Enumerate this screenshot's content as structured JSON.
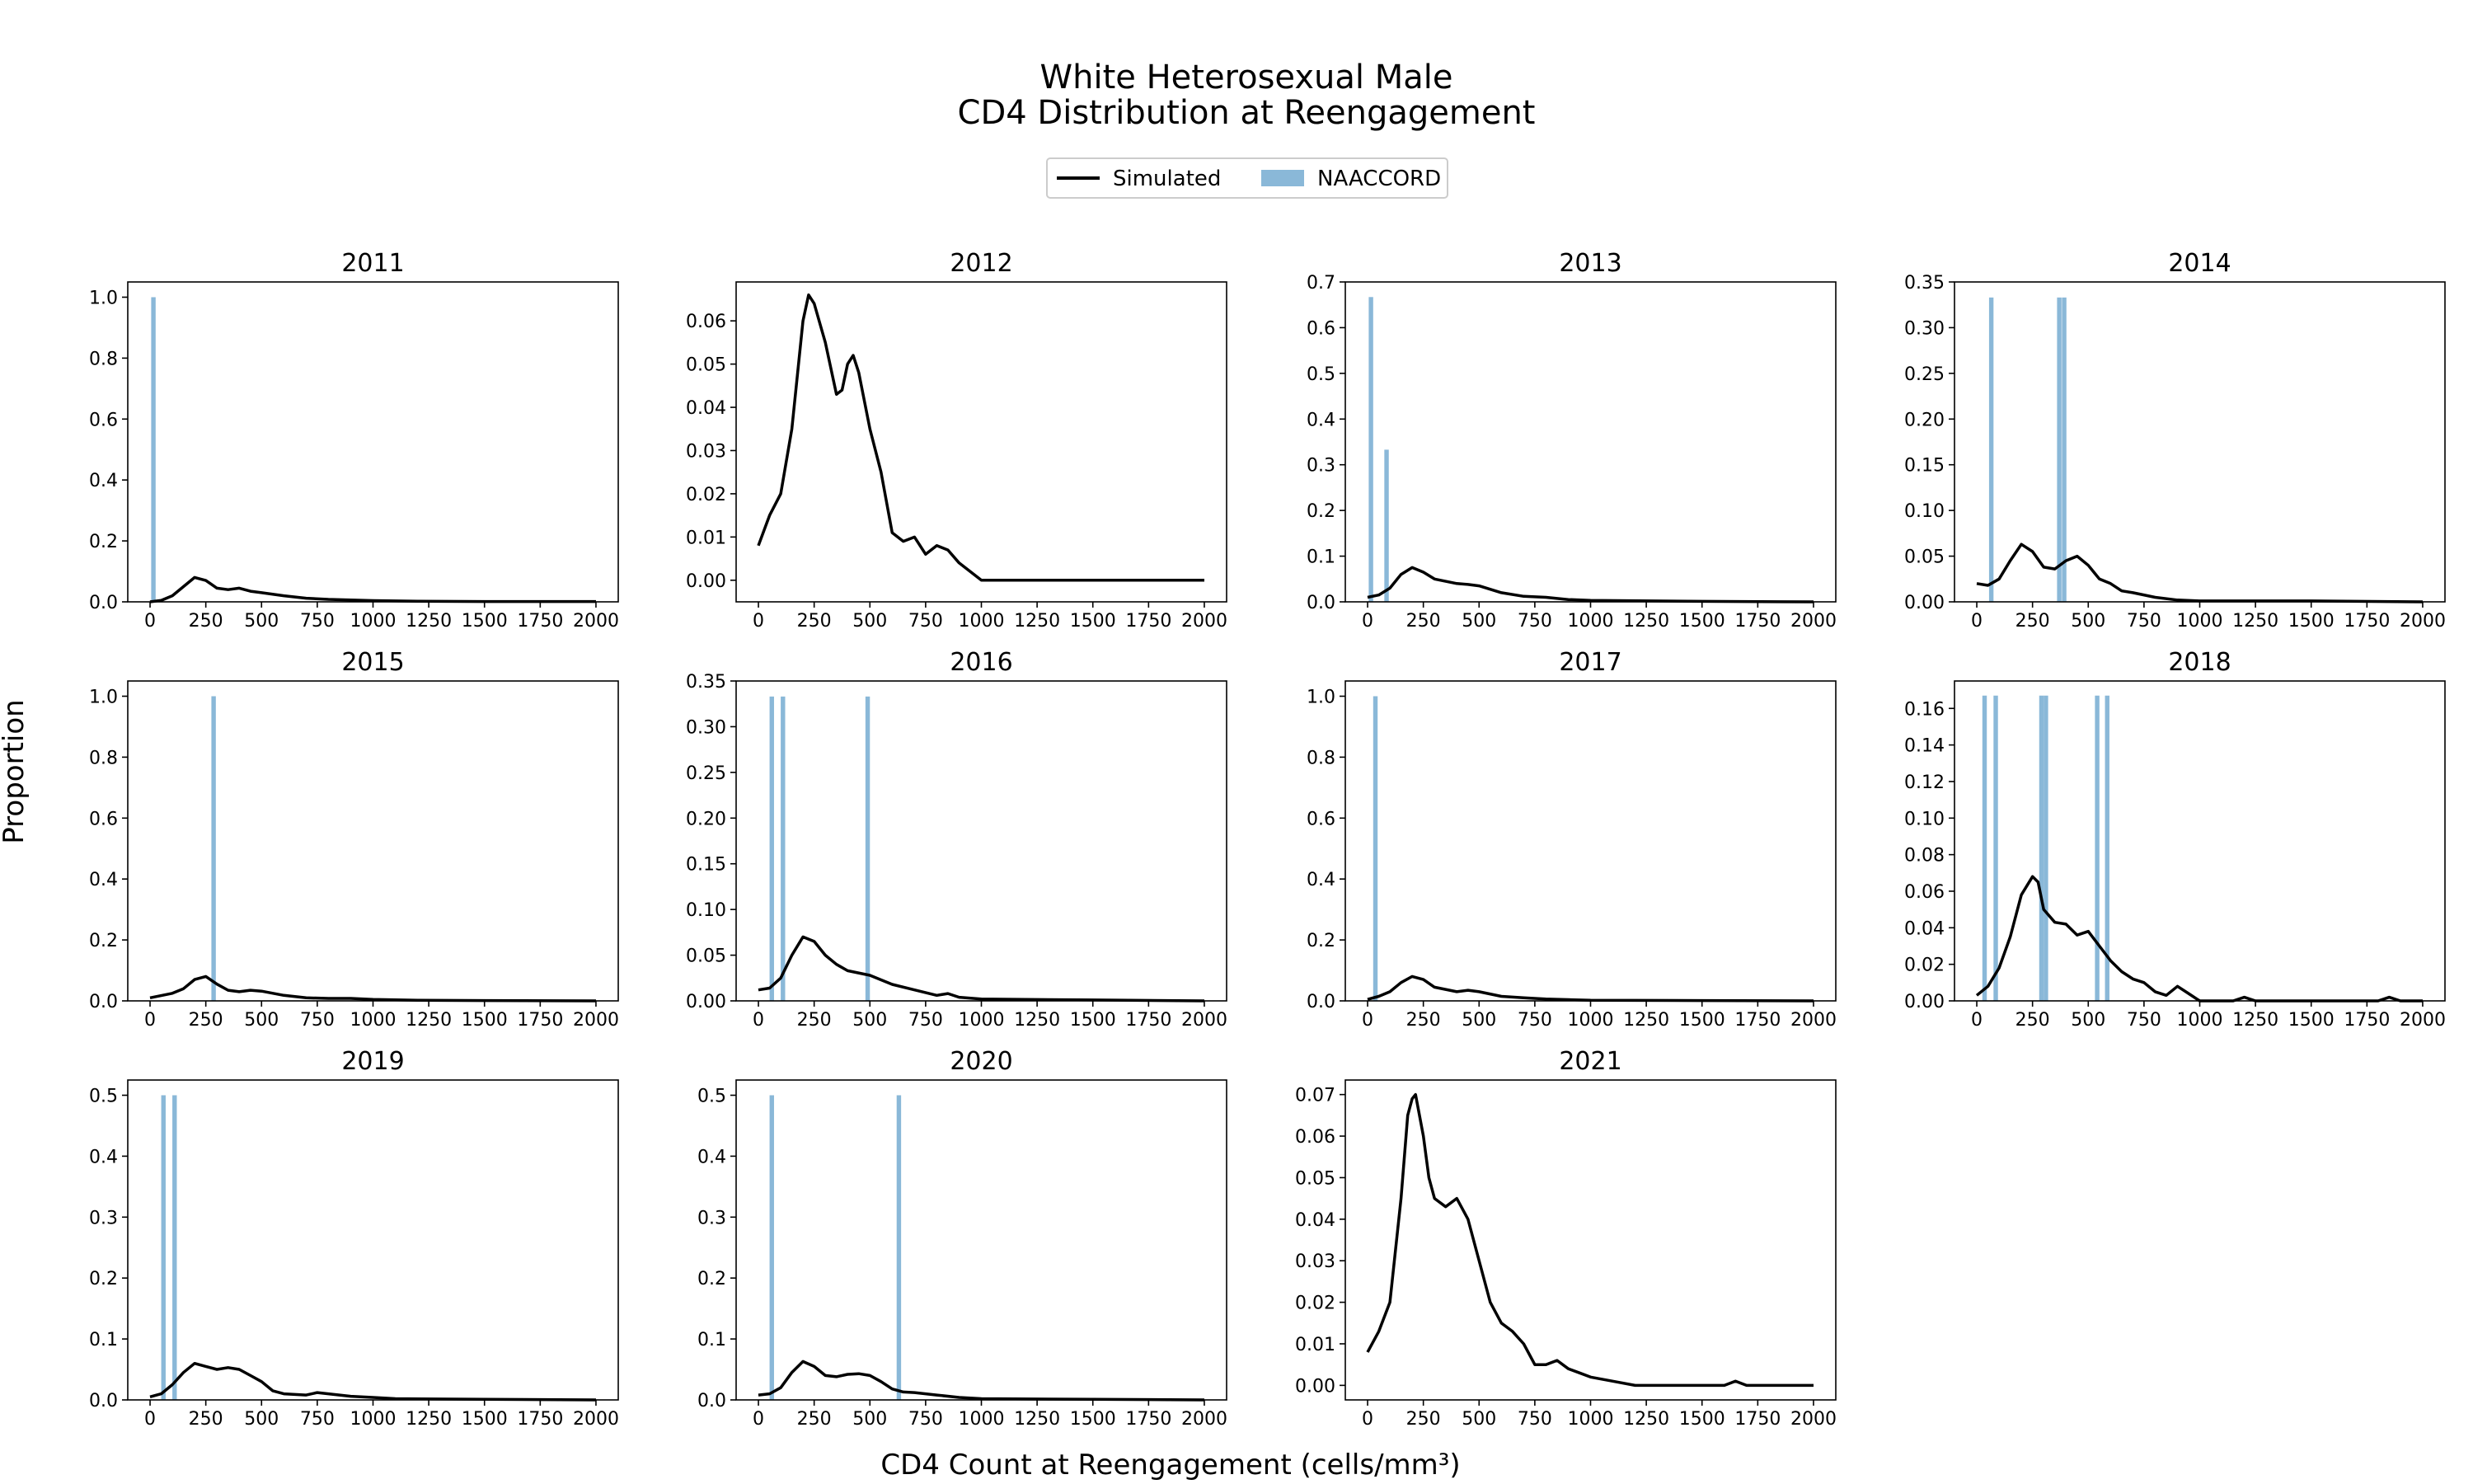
{
  "figure": {
    "title_line1": "White Heterosexual Male",
    "title_line2": "CD4 Distribution at Reengagement",
    "xlabel": "CD4 Count at Reengagement (cells/mm³)",
    "ylabel": "Proportion",
    "legend": [
      {
        "label": "Simulated",
        "kind": "line",
        "color": "#000000"
      },
      {
        "label": "NAACCORD",
        "kind": "bar",
        "color": "#8ab8d8"
      }
    ],
    "legend_placement": "top-center"
  },
  "chart_data": [
    {
      "type": "line+bar",
      "title": "2011",
      "xlim": [
        -100,
        2100
      ],
      "ylim": [
        0,
        1.05
      ],
      "xticks": [
        0,
        250,
        500,
        750,
        1000,
        1250,
        1500,
        1750,
        2000
      ],
      "yticks": [
        0.0,
        0.2,
        0.4,
        0.6,
        0.8,
        1.0
      ],
      "yfmt": 1,
      "bars": [
        {
          "x": 15,
          "value": 1.0
        }
      ],
      "simulated": [
        [
          0,
          0
        ],
        [
          50,
          0.005
        ],
        [
          100,
          0.02
        ],
        [
          150,
          0.05
        ],
        [
          200,
          0.08
        ],
        [
          250,
          0.07
        ],
        [
          300,
          0.045
        ],
        [
          350,
          0.04
        ],
        [
          400,
          0.045
        ],
        [
          450,
          0.035
        ],
        [
          500,
          0.03
        ],
        [
          600,
          0.02
        ],
        [
          700,
          0.012
        ],
        [
          800,
          0.008
        ],
        [
          1000,
          0.004
        ],
        [
          1200,
          0.002
        ],
        [
          1500,
          0.001
        ],
        [
          2000,
          0.001
        ]
      ]
    },
    {
      "type": "line+bar",
      "title": "2012",
      "xlim": [
        -100,
        2100
      ],
      "ylim": [
        -0.005,
        0.069
      ],
      "xticks": [
        0,
        250,
        500,
        750,
        1000,
        1250,
        1500,
        1750,
        2000
      ],
      "yticks": [
        0.0,
        0.01,
        0.02,
        0.03,
        0.04,
        0.05,
        0.06
      ],
      "yfmt": 2,
      "bars": [],
      "simulated": [
        [
          0,
          0.008
        ],
        [
          50,
          0.015
        ],
        [
          100,
          0.02
        ],
        [
          150,
          0.035
        ],
        [
          200,
          0.06
        ],
        [
          225,
          0.066
        ],
        [
          250,
          0.064
        ],
        [
          300,
          0.055
        ],
        [
          350,
          0.043
        ],
        [
          375,
          0.044
        ],
        [
          400,
          0.05
        ],
        [
          425,
          0.052
        ],
        [
          450,
          0.048
        ],
        [
          500,
          0.035
        ],
        [
          550,
          0.025
        ],
        [
          600,
          0.011
        ],
        [
          650,
          0.009
        ],
        [
          700,
          0.01
        ],
        [
          750,
          0.006
        ],
        [
          800,
          0.008
        ],
        [
          850,
          0.007
        ],
        [
          900,
          0.004
        ],
        [
          950,
          0.002
        ],
        [
          1000,
          0.0
        ],
        [
          1500,
          0.0
        ],
        [
          2000,
          0.0
        ]
      ]
    },
    {
      "type": "line+bar",
      "title": "2013",
      "xlim": [
        -100,
        2100
      ],
      "ylim": [
        0,
        0.7
      ],
      "xticks": [
        0,
        250,
        500,
        750,
        1000,
        1250,
        1500,
        1750,
        2000
      ],
      "yticks": [
        0.0,
        0.1,
        0.2,
        0.3,
        0.4,
        0.5,
        0.6,
        0.7
      ],
      "yfmt": 1,
      "bars": [
        {
          "x": 15,
          "value": 0.667
        },
        {
          "x": 85,
          "value": 0.333
        }
      ],
      "simulated": [
        [
          0,
          0.01
        ],
        [
          50,
          0.015
        ],
        [
          100,
          0.03
        ],
        [
          150,
          0.06
        ],
        [
          200,
          0.075
        ],
        [
          250,
          0.065
        ],
        [
          300,
          0.05
        ],
        [
          400,
          0.04
        ],
        [
          450,
          0.038
        ],
        [
          500,
          0.035
        ],
        [
          600,
          0.02
        ],
        [
          700,
          0.012
        ],
        [
          800,
          0.01
        ],
        [
          900,
          0.005
        ],
        [
          1000,
          0.003
        ],
        [
          1500,
          0.001
        ],
        [
          2000,
          0.0
        ]
      ]
    },
    {
      "type": "line+bar",
      "title": "2014",
      "xlim": [
        -100,
        2100
      ],
      "ylim": [
        0,
        0.35
      ],
      "xticks": [
        0,
        250,
        500,
        750,
        1000,
        1250,
        1500,
        1750,
        2000
      ],
      "yticks": [
        0.0,
        0.05,
        0.1,
        0.15,
        0.2,
        0.25,
        0.3,
        0.35
      ],
      "yfmt": 2,
      "bars": [
        {
          "x": 65,
          "value": 0.333
        },
        {
          "x": 370,
          "value": 0.333
        },
        {
          "x": 392,
          "value": 0.333
        }
      ],
      "simulated": [
        [
          0,
          0.02
        ],
        [
          50,
          0.018
        ],
        [
          100,
          0.025
        ],
        [
          150,
          0.045
        ],
        [
          200,
          0.063
        ],
        [
          250,
          0.055
        ],
        [
          300,
          0.038
        ],
        [
          350,
          0.036
        ],
        [
          400,
          0.045
        ],
        [
          450,
          0.05
        ],
        [
          500,
          0.04
        ],
        [
          550,
          0.025
        ],
        [
          600,
          0.02
        ],
        [
          650,
          0.012
        ],
        [
          700,
          0.01
        ],
        [
          800,
          0.005
        ],
        [
          900,
          0.002
        ],
        [
          1000,
          0.001
        ],
        [
          1500,
          0.001
        ],
        [
          2000,
          0.0
        ]
      ]
    },
    {
      "type": "line+bar",
      "title": "2015",
      "xlim": [
        -100,
        2100
      ],
      "ylim": [
        0,
        1.05
      ],
      "xticks": [
        0,
        250,
        500,
        750,
        1000,
        1250,
        1500,
        1750,
        2000
      ],
      "yticks": [
        0.0,
        0.2,
        0.4,
        0.6,
        0.8,
        1.0
      ],
      "yfmt": 1,
      "bars": [
        {
          "x": 285,
          "value": 1.0
        }
      ],
      "simulated": [
        [
          0,
          0.01
        ],
        [
          100,
          0.025
        ],
        [
          150,
          0.04
        ],
        [
          200,
          0.07
        ],
        [
          250,
          0.08
        ],
        [
          300,
          0.055
        ],
        [
          350,
          0.035
        ],
        [
          400,
          0.03
        ],
        [
          450,
          0.035
        ],
        [
          500,
          0.032
        ],
        [
          600,
          0.018
        ],
        [
          700,
          0.01
        ],
        [
          800,
          0.008
        ],
        [
          900,
          0.008
        ],
        [
          1000,
          0.005
        ],
        [
          1200,
          0.002
        ],
        [
          1500,
          0.001
        ],
        [
          2000,
          0.0
        ]
      ]
    },
    {
      "type": "line+bar",
      "title": "2016",
      "xlim": [
        -100,
        2100
      ],
      "ylim": [
        0,
        0.35
      ],
      "xticks": [
        0,
        250,
        500,
        750,
        1000,
        1250,
        1500,
        1750,
        2000
      ],
      "yticks": [
        0.0,
        0.05,
        0.1,
        0.15,
        0.2,
        0.25,
        0.3,
        0.35
      ],
      "yfmt": 2,
      "bars": [
        {
          "x": 60,
          "value": 0.333
        },
        {
          "x": 110,
          "value": 0.333
        },
        {
          "x": 490,
          "value": 0.333
        }
      ],
      "simulated": [
        [
          0,
          0.012
        ],
        [
          50,
          0.014
        ],
        [
          100,
          0.025
        ],
        [
          150,
          0.05
        ],
        [
          200,
          0.07
        ],
        [
          250,
          0.065
        ],
        [
          300,
          0.05
        ],
        [
          350,
          0.04
        ],
        [
          400,
          0.033
        ],
        [
          500,
          0.028
        ],
        [
          600,
          0.018
        ],
        [
          700,
          0.012
        ],
        [
          800,
          0.006
        ],
        [
          850,
          0.008
        ],
        [
          900,
          0.004
        ],
        [
          1000,
          0.002
        ],
        [
          1500,
          0.001
        ],
        [
          2000,
          0.0
        ]
      ]
    },
    {
      "type": "line+bar",
      "title": "2017",
      "xlim": [
        -100,
        2100
      ],
      "ylim": [
        0,
        1.05
      ],
      "xticks": [
        0,
        250,
        500,
        750,
        1000,
        1250,
        1500,
        1750,
        2000
      ],
      "yticks": [
        0.0,
        0.2,
        0.4,
        0.6,
        0.8,
        1.0
      ],
      "yfmt": 1,
      "bars": [
        {
          "x": 35,
          "value": 1.0
        }
      ],
      "simulated": [
        [
          0,
          0.005
        ],
        [
          50,
          0.015
        ],
        [
          100,
          0.03
        ],
        [
          150,
          0.06
        ],
        [
          200,
          0.08
        ],
        [
          250,
          0.07
        ],
        [
          300,
          0.045
        ],
        [
          400,
          0.03
        ],
        [
          450,
          0.035
        ],
        [
          500,
          0.03
        ],
        [
          600,
          0.015
        ],
        [
          700,
          0.01
        ],
        [
          800,
          0.006
        ],
        [
          900,
          0.004
        ],
        [
          1000,
          0.002
        ],
        [
          1500,
          0.001
        ],
        [
          2000,
          0.0
        ]
      ]
    },
    {
      "type": "line+bar",
      "title": "2018",
      "xlim": [
        -100,
        2100
      ],
      "ylim": [
        0,
        0.175
      ],
      "xticks": [
        0,
        250,
        500,
        750,
        1000,
        1250,
        1500,
        1750,
        2000
      ],
      "yticks": [
        0.0,
        0.02,
        0.04,
        0.06,
        0.08,
        0.1,
        0.12,
        0.14,
        0.16
      ],
      "yfmt": 2,
      "bars": [
        {
          "x": 35,
          "value": 0.167
        },
        {
          "x": 85,
          "value": 0.167
        },
        {
          "x": 290,
          "value": 0.167
        },
        {
          "x": 310,
          "value": 0.167
        },
        {
          "x": 540,
          "value": 0.167
        },
        {
          "x": 585,
          "value": 0.167
        }
      ],
      "simulated": [
        [
          0,
          0.003
        ],
        [
          50,
          0.008
        ],
        [
          100,
          0.018
        ],
        [
          150,
          0.035
        ],
        [
          200,
          0.058
        ],
        [
          250,
          0.068
        ],
        [
          275,
          0.065
        ],
        [
          300,
          0.05
        ],
        [
          350,
          0.043
        ],
        [
          400,
          0.042
        ],
        [
          450,
          0.036
        ],
        [
          500,
          0.038
        ],
        [
          550,
          0.03
        ],
        [
          600,
          0.022
        ],
        [
          650,
          0.016
        ],
        [
          700,
          0.012
        ],
        [
          750,
          0.01
        ],
        [
          800,
          0.005
        ],
        [
          850,
          0.003
        ],
        [
          900,
          0.008
        ],
        [
          950,
          0.004
        ],
        [
          1000,
          0.0
        ],
        [
          1150,
          0.0
        ],
        [
          1200,
          0.002
        ],
        [
          1250,
          0.0
        ],
        [
          1800,
          0.0
        ],
        [
          1850,
          0.002
        ],
        [
          1900,
          0.0
        ],
        [
          2000,
          0.0
        ]
      ]
    },
    {
      "type": "line+bar",
      "title": "2019",
      "xlim": [
        -100,
        2100
      ],
      "ylim": [
        0,
        0.525
      ],
      "xticks": [
        0,
        250,
        500,
        750,
        1000,
        1250,
        1500,
        1750,
        2000
      ],
      "yticks": [
        0.0,
        0.1,
        0.2,
        0.3,
        0.4,
        0.5
      ],
      "yfmt": 1,
      "bars": [
        {
          "x": 60,
          "value": 0.5
        },
        {
          "x": 110,
          "value": 0.5
        }
      ],
      "simulated": [
        [
          0,
          0.005
        ],
        [
          50,
          0.01
        ],
        [
          100,
          0.025
        ],
        [
          150,
          0.045
        ],
        [
          200,
          0.06
        ],
        [
          250,
          0.055
        ],
        [
          300,
          0.05
        ],
        [
          350,
          0.053
        ],
        [
          400,
          0.05
        ],
        [
          450,
          0.04
        ],
        [
          500,
          0.03
        ],
        [
          550,
          0.015
        ],
        [
          600,
          0.01
        ],
        [
          700,
          0.008
        ],
        [
          750,
          0.012
        ],
        [
          800,
          0.01
        ],
        [
          900,
          0.006
        ],
        [
          1000,
          0.004
        ],
        [
          1100,
          0.002
        ],
        [
          1500,
          0.001
        ],
        [
          2000,
          0.0
        ]
      ]
    },
    {
      "type": "line+bar",
      "title": "2020",
      "xlim": [
        -100,
        2100
      ],
      "ylim": [
        0,
        0.525
      ],
      "xticks": [
        0,
        250,
        500,
        750,
        1000,
        1250,
        1500,
        1750,
        2000
      ],
      "yticks": [
        0.0,
        0.1,
        0.2,
        0.3,
        0.4,
        0.5
      ],
      "yfmt": 1,
      "bars": [
        {
          "x": 60,
          "value": 0.5
        },
        {
          "x": 630,
          "value": 0.5
        }
      ],
      "simulated": [
        [
          0,
          0.008
        ],
        [
          50,
          0.01
        ],
        [
          100,
          0.02
        ],
        [
          150,
          0.045
        ],
        [
          200,
          0.063
        ],
        [
          250,
          0.055
        ],
        [
          300,
          0.04
        ],
        [
          350,
          0.038
        ],
        [
          400,
          0.042
        ],
        [
          450,
          0.043
        ],
        [
          500,
          0.04
        ],
        [
          550,
          0.03
        ],
        [
          600,
          0.018
        ],
        [
          650,
          0.013
        ],
        [
          700,
          0.012
        ],
        [
          800,
          0.008
        ],
        [
          900,
          0.004
        ],
        [
          1000,
          0.002
        ],
        [
          1500,
          0.001
        ],
        [
          2000,
          0.0
        ]
      ]
    },
    {
      "type": "line+bar",
      "title": "2021",
      "xlim": [
        -100,
        2100
      ],
      "ylim": [
        -0.0035,
        0.0735
      ],
      "xticks": [
        0,
        250,
        500,
        750,
        1000,
        1250,
        1500,
        1750,
        2000
      ],
      "yticks": [
        0.0,
        0.01,
        0.02,
        0.03,
        0.04,
        0.05,
        0.06,
        0.07
      ],
      "yfmt": 2,
      "bars": [],
      "simulated": [
        [
          0,
          0.008
        ],
        [
          50,
          0.013
        ],
        [
          100,
          0.02
        ],
        [
          150,
          0.045
        ],
        [
          180,
          0.065
        ],
        [
          200,
          0.069
        ],
        [
          215,
          0.07
        ],
        [
          250,
          0.06
        ],
        [
          275,
          0.05
        ],
        [
          300,
          0.045
        ],
        [
          350,
          0.043
        ],
        [
          400,
          0.045
        ],
        [
          450,
          0.04
        ],
        [
          500,
          0.03
        ],
        [
          550,
          0.02
        ],
        [
          600,
          0.015
        ],
        [
          650,
          0.013
        ],
        [
          700,
          0.01
        ],
        [
          750,
          0.005
        ],
        [
          800,
          0.005
        ],
        [
          850,
          0.006
        ],
        [
          900,
          0.004
        ],
        [
          950,
          0.003
        ],
        [
          1000,
          0.002
        ],
        [
          1100,
          0.001
        ],
        [
          1200,
          0.0
        ],
        [
          1600,
          0.0
        ],
        [
          1650,
          0.001
        ],
        [
          1700,
          0.0
        ],
        [
          2000,
          0.0
        ]
      ]
    }
  ]
}
